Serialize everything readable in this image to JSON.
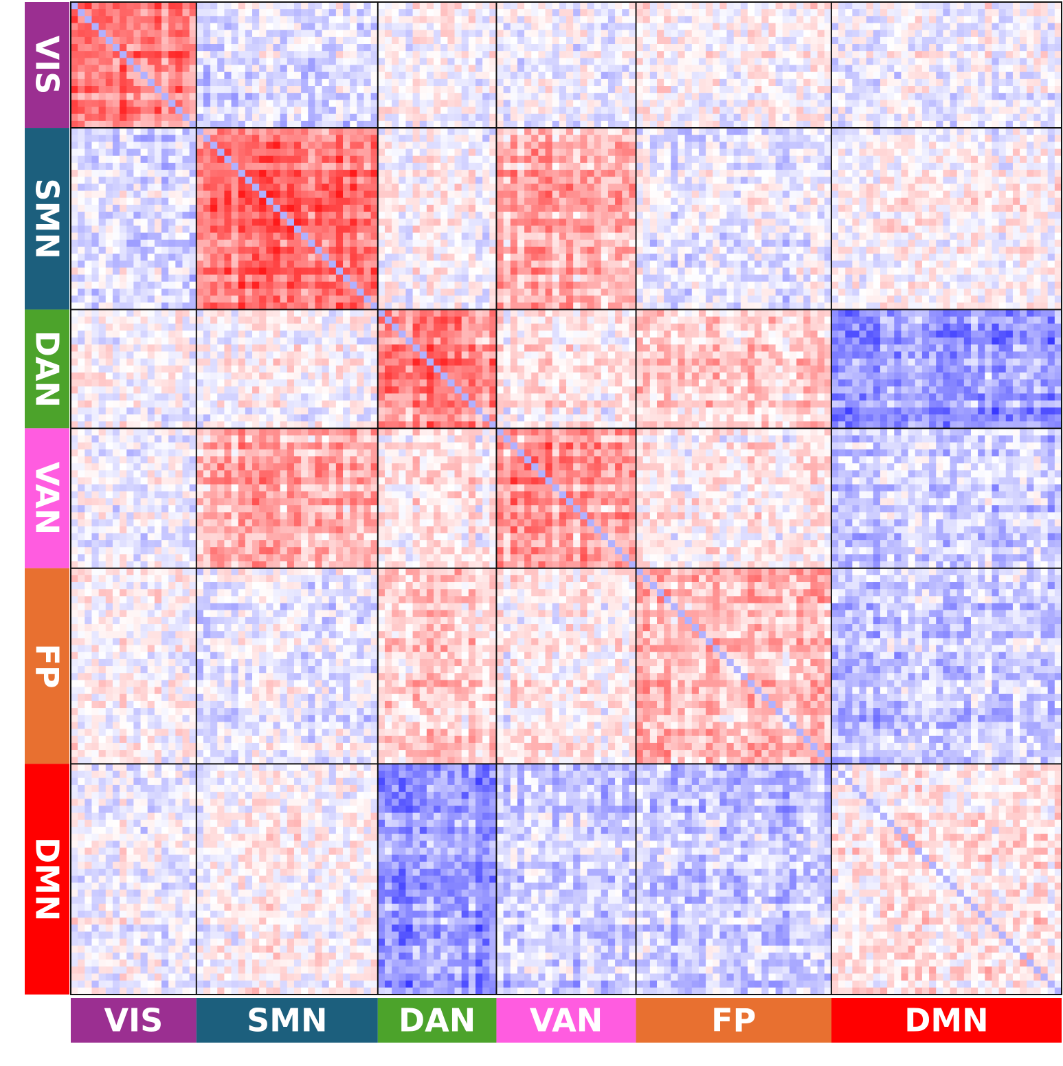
{
  "chart_data": {
    "type": "heatmap",
    "title": "",
    "xlabel": "",
    "ylabel": "",
    "legend": "none",
    "grid": false,
    "color_scale": {
      "negative": "#1f1fff",
      "zero": "#ffffff",
      "positive": "#ff1a1a",
      "range": [
        -1,
        1
      ]
    },
    "networks": [
      {
        "label": "VIS",
        "color": "#9b2f91",
        "regions": 18
      },
      {
        "label": "SMN",
        "color": "#1c5f7d",
        "regions": 26
      },
      {
        "label": "DAN",
        "color": "#4ca32b",
        "regions": 17
      },
      {
        "label": "VAN",
        "color": "#ff5ce0",
        "regions": 20
      },
      {
        "label": "FP",
        "color": "#e87030",
        "regions": 28
      },
      {
        "label": "DMN",
        "color": "#ff0000",
        "regions": 33
      }
    ],
    "block_mean_correlation": [
      [
        0.55,
        -0.15,
        0.0,
        -0.05,
        0.0,
        -0.05
      ],
      [
        -0.15,
        0.6,
        0.0,
        0.35,
        -0.1,
        0.02
      ],
      [
        0.0,
        0.0,
        0.55,
        0.1,
        0.2,
        -0.45
      ],
      [
        -0.05,
        0.35,
        0.1,
        0.45,
        0.05,
        -0.2
      ],
      [
        0.0,
        -0.1,
        0.2,
        0.05,
        0.25,
        -0.25
      ],
      [
        -0.05,
        0.02,
        -0.45,
        -0.2,
        -0.25,
        0.1
      ]
    ]
  }
}
